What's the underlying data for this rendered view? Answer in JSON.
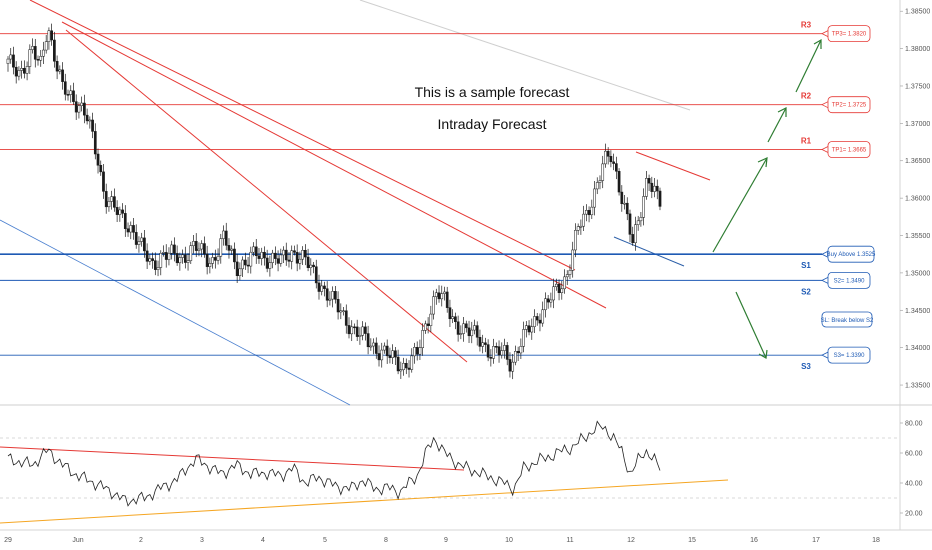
{
  "chart_data": {
    "type": "candlestick",
    "annotations": [
      "This is a sample forecast",
      "Intraday Forecast"
    ],
    "x_ticks": [
      "29",
      "Jun",
      "2",
      "3",
      "4",
      "5",
      "8",
      "9",
      "10",
      "11",
      "12",
      "15",
      "16",
      "17",
      "18"
    ],
    "price_axis": {
      "ticks": [
        "1.33500",
        "1.34000",
        "1.34500",
        "1.35000",
        "1.35500",
        "1.36000",
        "1.36500",
        "1.37000",
        "1.37500",
        "1.38000",
        "1.38500"
      ],
      "ylim": [
        1.333,
        1.3865
      ]
    },
    "levels": [
      {
        "name": "R3",
        "price": 1.382,
        "box": "TP3= 1.3820",
        "color": "#e53935"
      },
      {
        "name": "R2",
        "price": 1.3725,
        "box": "TP2= 1.3725",
        "color": "#e53935"
      },
      {
        "name": "R1",
        "price": 1.3665,
        "box": "TP1= 1.3665",
        "color": "#e53935"
      },
      {
        "name": "S1",
        "price": 1.3525,
        "box": "Buy Above 1.3525",
        "color": "#1e5ab4"
      },
      {
        "name": "S2",
        "price": 1.349,
        "box": "S2= 1.3490",
        "color": "#1e5ab4"
      },
      {
        "name": "S3",
        "price": 1.339,
        "box": "S3= 1.3390",
        "color": "#1e5ab4"
      }
    ],
    "stop_note": "SL: Break below S2",
    "ohlc_path": [
      [
        0,
        1.378
      ],
      [
        0.5,
        1.377
      ],
      [
        1.0,
        1.3795
      ],
      [
        1.3,
        1.3775
      ],
      [
        1.6,
        1.3835
      ],
      [
        1.9,
        1.3785
      ],
      [
        2.2,
        1.3745
      ],
      [
        2.6,
        1.3735
      ],
      [
        2.9,
        1.3725
      ],
      [
        3.2,
        1.3705
      ],
      [
        3.6,
        1.3655
      ],
      [
        3.9,
        1.3605
      ],
      [
        4.5,
        1.3575
      ],
      [
        5.0,
        1.356
      ],
      [
        5.5,
        1.3525
      ],
      [
        5.8,
        1.351
      ],
      [
        6.2,
        1.3525
      ],
      [
        7.0,
        1.352
      ],
      [
        7.5,
        1.3535
      ],
      [
        8.2,
        1.3515
      ],
      [
        8.7,
        1.3545
      ],
      [
        9.2,
        1.351
      ],
      [
        9.7,
        1.3515
      ],
      [
        10.0,
        1.3525
      ],
      [
        10.5,
        1.352
      ],
      [
        11.0,
        1.3515
      ],
      [
        11.5,
        1.353
      ],
      [
        12.0,
        1.3515
      ],
      [
        12.5,
        1.349
      ],
      [
        13.0,
        1.3465
      ],
      [
        13.5,
        1.3445
      ],
      [
        14.0,
        1.342
      ],
      [
        14.5,
        1.341
      ],
      [
        15.0,
        1.3395
      ],
      [
        15.5,
        1.3385
      ],
      [
        16.0,
        1.3375
      ],
      [
        16.5,
        1.339
      ],
      [
        17.0,
        1.345
      ],
      [
        17.3,
        1.3475
      ],
      [
        17.6,
        1.346
      ],
      [
        18.0,
        1.3435
      ],
      [
        18.5,
        1.342
      ],
      [
        19.0,
        1.3415
      ],
      [
        19.5,
        1.339
      ],
      [
        20.0,
        1.3395
      ],
      [
        20.3,
        1.338
      ],
      [
        20.6,
        1.34
      ],
      [
        21.0,
        1.3425
      ],
      [
        21.5,
        1.345
      ],
      [
        22.0,
        1.347
      ],
      [
        22.5,
        1.3495
      ],
      [
        23.0,
        1.356
      ],
      [
        23.3,
        1.3575
      ],
      [
        23.6,
        1.3605
      ],
      [
        24.0,
        1.3645
      ],
      [
        24.3,
        1.3655
      ],
      [
        24.6,
        1.3625
      ],
      [
        25.0,
        1.357
      ],
      [
        25.2,
        1.3535
      ],
      [
        25.5,
        1.358
      ],
      [
        25.8,
        1.3635
      ],
      [
        26.0,
        1.3615
      ],
      [
        26.3,
        1.359
      ]
    ],
    "rsi_axis": {
      "ticks": [
        "20.00",
        "40.00",
        "60.00",
        "80.00"
      ],
      "ylim": [
        10,
        90
      ]
    },
    "rsi_path": [
      [
        0,
        56
      ],
      [
        1.0,
        52
      ],
      [
        1.6,
        62
      ],
      [
        2.2,
        52
      ],
      [
        2.8,
        45
      ],
      [
        3.5,
        40
      ],
      [
        4.2,
        34
      ],
      [
        4.7,
        28
      ],
      [
        5.5,
        30
      ],
      [
        6.3,
        38
      ],
      [
        6.8,
        42
      ],
      [
        7.2,
        50
      ],
      [
        7.6,
        56
      ],
      [
        8.0,
        52
      ],
      [
        8.6,
        46
      ],
      [
        9.2,
        52
      ],
      [
        9.8,
        46
      ],
      [
        10.4,
        47
      ],
      [
        11.0,
        45
      ],
      [
        11.5,
        50
      ],
      [
        12.0,
        40
      ],
      [
        12.5,
        44
      ],
      [
        13.2,
        38
      ],
      [
        13.8,
        36
      ],
      [
        14.3,
        42
      ],
      [
        14.8,
        36
      ],
      [
        15.3,
        37
      ],
      [
        15.8,
        34
      ],
      [
        16.5,
        45
      ],
      [
        16.9,
        62
      ],
      [
        17.2,
        70
      ],
      [
        17.6,
        60
      ],
      [
        18.2,
        52
      ],
      [
        18.8,
        48
      ],
      [
        19.4,
        44
      ],
      [
        20.0,
        40
      ],
      [
        20.4,
        36
      ],
      [
        20.8,
        50
      ],
      [
        21.4,
        55
      ],
      [
        21.9,
        58
      ],
      [
        22.4,
        62
      ],
      [
        22.8,
        64
      ],
      [
        23.2,
        70
      ],
      [
        23.7,
        76
      ],
      [
        24.0,
        78
      ],
      [
        24.4,
        70
      ],
      [
        24.8,
        60
      ],
      [
        25.1,
        45
      ],
      [
        25.4,
        55
      ],
      [
        25.7,
        62
      ],
      [
        26.0,
        56
      ],
      [
        26.3,
        50
      ]
    ]
  }
}
